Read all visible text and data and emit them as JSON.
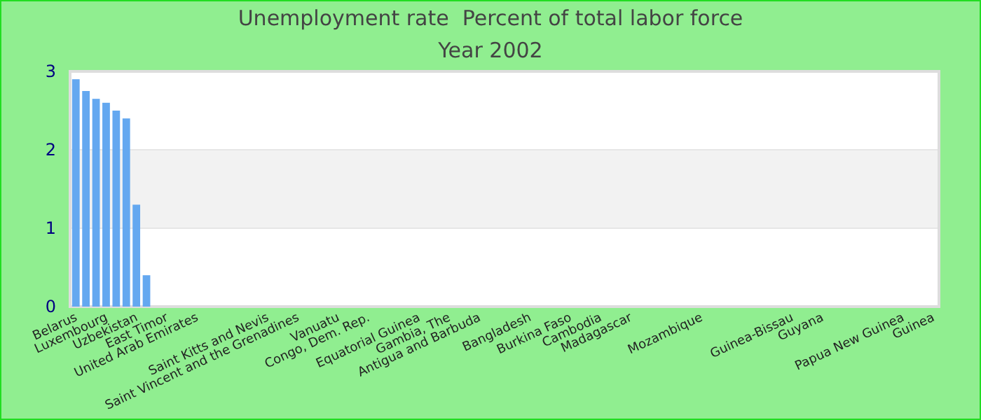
{
  "chart_data": {
    "type": "bar",
    "title": "Unemployment rate  Percent of total labor force",
    "subtitle": "Year 2002",
    "categories": [
      "Belarus",
      null,
      null,
      "Luxembourg",
      null,
      null,
      "Uzbekistan",
      null,
      null,
      "East Timor",
      null,
      null,
      "United Arab Emirates",
      null,
      null,
      null,
      null,
      null,
      null,
      "Saint Kitts and Nevis",
      null,
      null,
      "Saint Vincent and the Grenadines",
      null,
      null,
      null,
      "Vanuatu",
      null,
      null,
      "Congo, Dem. Rep.",
      null,
      null,
      null,
      null,
      "Equatorial Guinea",
      null,
      null,
      "Gambia, The",
      null,
      null,
      "Antigua and Barbuda",
      null,
      null,
      null,
      null,
      "Bangladesh",
      null,
      null,
      null,
      "Burkina Faso",
      null,
      null,
      "Cambodia",
      null,
      null,
      "Madagascar",
      null,
      null,
      null,
      null,
      null,
      null,
      "Mozambique",
      null,
      null,
      null,
      null,
      null,
      null,
      null,
      null,
      "Guinea-Bissau",
      null,
      null,
      "Guyana",
      null,
      null,
      null,
      null,
      null,
      null,
      null,
      "Papua New Guinea",
      null,
      null,
      "Guinea"
    ],
    "values": [
      2.9,
      2.75,
      2.65,
      2.6,
      2.5,
      2.4,
      1.3,
      0.4,
      null,
      null,
      null,
      null,
      null,
      null,
      null,
      null,
      null,
      null,
      null,
      null,
      null,
      null,
      null,
      null,
      null,
      null,
      null,
      null,
      null,
      null,
      null,
      null,
      null,
      null,
      null,
      null,
      null,
      null,
      null,
      null,
      null,
      null,
      null,
      null,
      null,
      null,
      null,
      null,
      null,
      null,
      null,
      null,
      null,
      null,
      null,
      null,
      null,
      null,
      null,
      null,
      null,
      null,
      null,
      null,
      null,
      null,
      null,
      null,
      null,
      null,
      null,
      null,
      null,
      null,
      null,
      null,
      null,
      null,
      null,
      null,
      null,
      null,
      null,
      null,
      null,
      null
    ],
    "color": "#64a8f0",
    "ylim": [
      0,
      3
    ],
    "yticks": [
      0,
      1,
      2,
      3
    ],
    "grid": "y",
    "bands": [
      {
        "axis": "y",
        "from": 1,
        "to": 2,
        "color": "#f2f2f2"
      }
    ]
  }
}
